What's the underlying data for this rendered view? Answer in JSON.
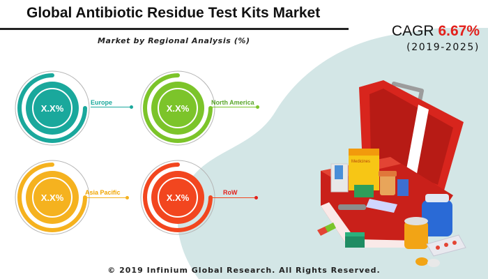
{
  "header": {
    "title": "Global Antibiotic Residue Test Kits Market",
    "subtitle": "Market by Regional Analysis (%)"
  },
  "cagr": {
    "label": "CAGR",
    "value": "6.67%",
    "period": "(2019-2025)",
    "value_color": "#e3201b"
  },
  "regions": [
    {
      "name": "Europe",
      "value": "X.X%",
      "color": "#1aa89c"
    },
    {
      "name": "North America",
      "value": "X.X%",
      "color": "#7cc42a"
    },
    {
      "name": "Asia Pacific",
      "value": "X.X%",
      "color": "#f5b21f"
    },
    {
      "name": "RoW",
      "value": "X.X%",
      "color": "#f2461f"
    }
  ],
  "illustration": {
    "icon": "first-aid-medicine-box-icon",
    "box_label": "Medicines"
  },
  "footer": {
    "copyright": "© 2019 Infinium Global Research. All Rights Reserved."
  }
}
